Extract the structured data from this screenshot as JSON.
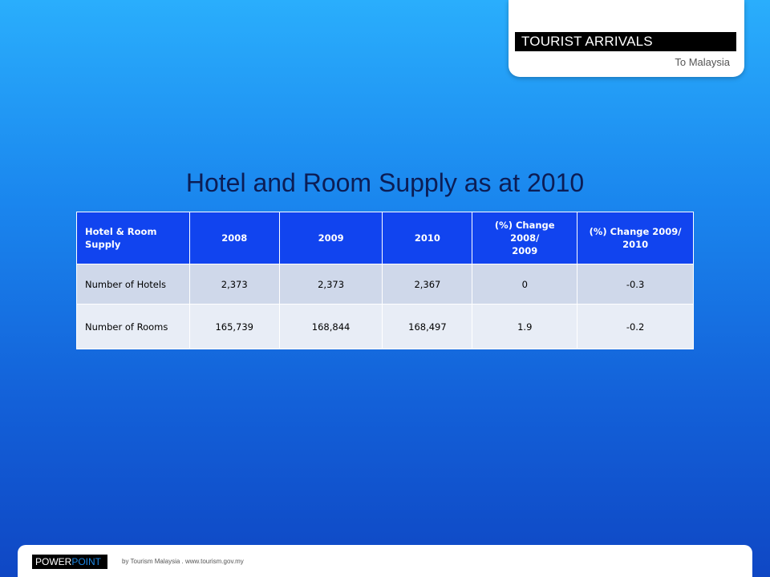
{
  "header_card": {
    "label": "TOURIST ARRIVALS",
    "sublabel": "To Malaysia"
  },
  "slide": {
    "title": "Hotel and Room Supply as at 2010"
  },
  "table": {
    "headers": [
      [
        "Hotel & Room",
        "Supply"
      ],
      [
        "2008"
      ],
      [
        "2009"
      ],
      [
        "2010"
      ],
      [
        "(%) Change",
        "2008/",
        "2009"
      ],
      [
        "(%) Change 2009/",
        "2010"
      ]
    ],
    "rows": [
      [
        "Number of Hotels",
        "2,373",
        "2,373",
        "2,367",
        "0",
        "-0.3"
      ],
      [
        "Number of Rooms",
        "165,739",
        "168,844",
        "168,497",
        "1.9",
        "-0.2"
      ]
    ]
  },
  "footer": {
    "brand_part1": "POWER",
    "brand_part2": "POINT",
    "credit": "by Tourism Malaysia . www.tourism.gov.my"
  }
}
